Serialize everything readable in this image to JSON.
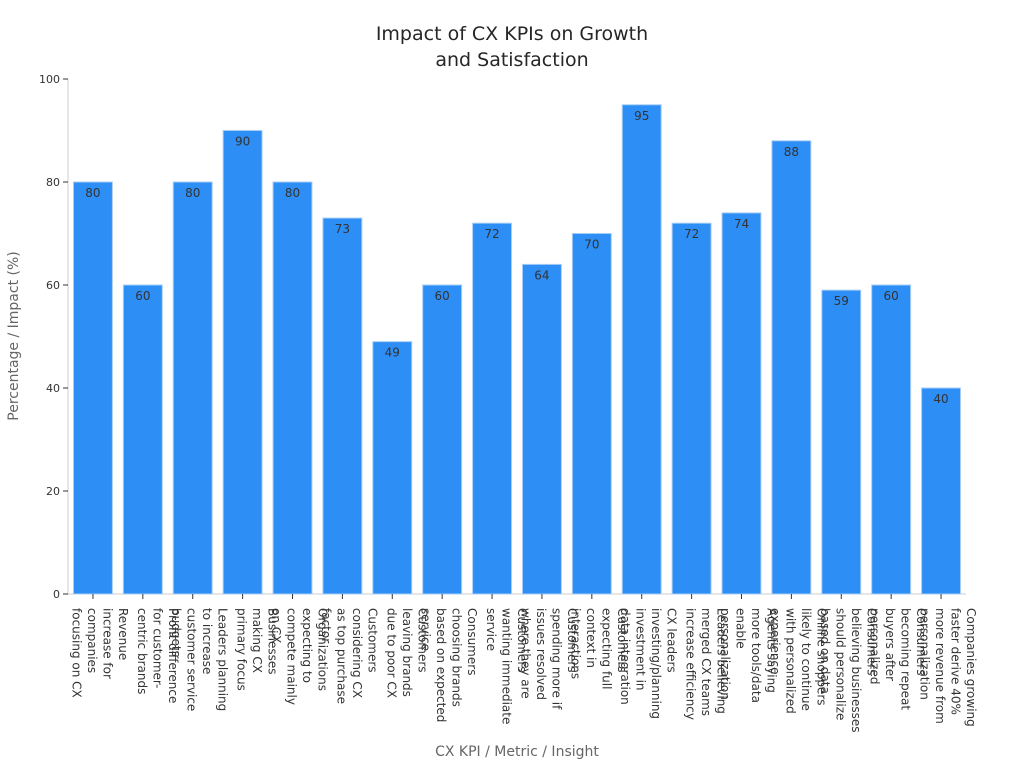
{
  "chart_data": {
    "type": "bar",
    "title_lines": [
      "Impact of CX KPIs on Growth",
      "and Satisfaction"
    ],
    "xlabel": "CX KPI / Metric / Insight",
    "ylabel": "Percentage / Impact (%)",
    "ylim": [
      0,
      100
    ],
    "yticks": [
      0,
      20,
      40,
      60,
      80,
      100
    ],
    "grid": false,
    "bar_color": "#2d8ef5",
    "bar_edge_color": "#a7cdf5",
    "categories": [
      {
        "lines": [
          "Revenue",
          "increase for",
          "companies",
          "focusing on CX"
        ],
        "value": 80
      },
      {
        "lines": [
          "Profit difference",
          "for customer-",
          "centric brands"
        ],
        "value": 60
      },
      {
        "lines": [
          "Leaders planning",
          "to increase",
          "customer service",
          "budgets"
        ],
        "value": 80
      },
      {
        "lines": [
          "Businesses",
          "making CX",
          "primary focus"
        ],
        "value": 90
      },
      {
        "lines": [
          "Organizations",
          "expecting to",
          "compete mainly",
          "on CX"
        ],
        "value": 80
      },
      {
        "lines": [
          "Customers",
          "considering CX",
          "as top purchase",
          "factor"
        ],
        "value": 73
      },
      {
        "lines": [
          "Customers",
          "leaving brands",
          "due to poor CX"
        ],
        "value": 49
      },
      {
        "lines": [
          "Consumers",
          "choosing brands",
          "based on expected",
          "service"
        ],
        "value": 60
      },
      {
        "lines": [
          "Customers",
          "wanting immediate",
          "service"
        ],
        "value": 72
      },
      {
        "lines": [
          "Customers",
          "spending more if",
          "issues resolved",
          "where they are"
        ],
        "value": 64
      },
      {
        "lines": [
          "Customers",
          "expecting full",
          "context in",
          "interactions"
        ],
        "value": 70
      },
      {
        "lines": [
          "CX leaders",
          "investing/planning",
          "investment in",
          "data integration"
        ],
        "value": 95
      },
      {
        "lines": [
          "Leaders believing",
          "merged CX teams",
          "increase efficiency"
        ],
        "value": 72
      },
      {
        "lines": [
          "Agents saying",
          "more tools/data",
          "enable",
          "personalization"
        ],
        "value": 74
      },
      {
        "lines": [
          "Online shoppers",
          "likely to continue",
          "with personalized",
          "experience"
        ],
        "value": 88
      },
      {
        "lines": [
          "Consumers",
          "believing businesses",
          "should personalize",
          "based on data"
        ],
        "value": 59
      },
      {
        "lines": [
          "Consumers",
          "becoming repeat",
          "buyers after",
          "personalized"
        ],
        "value": 60
      },
      {
        "lines": [
          "Companies growing",
          "faster derive 40%",
          "more revenue from",
          "personalization"
        ],
        "value": 40
      }
    ]
  }
}
